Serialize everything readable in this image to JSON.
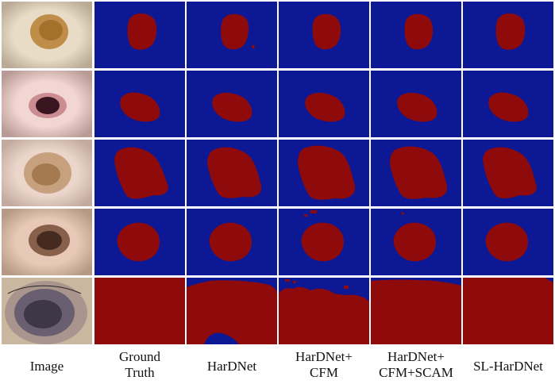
{
  "figure": {
    "columns": [
      {
        "id": "image",
        "label": "Image"
      },
      {
        "id": "ground-truth",
        "label": "Ground\nTruth"
      },
      {
        "id": "hardnet",
        "label": "HarDNet"
      },
      {
        "id": "hardnet-cfm",
        "label": "HarDNet+\nCFM"
      },
      {
        "id": "hardnet-cfm-scam",
        "label": "HarDNet+\nCFM+SCAM"
      },
      {
        "id": "sl-hardnet",
        "label": "SL-HarDNet"
      }
    ],
    "rows": 5,
    "colors": {
      "background": "#0d1894",
      "lesion": "#8f0a0a",
      "grid_line": "#ffffff"
    }
  }
}
